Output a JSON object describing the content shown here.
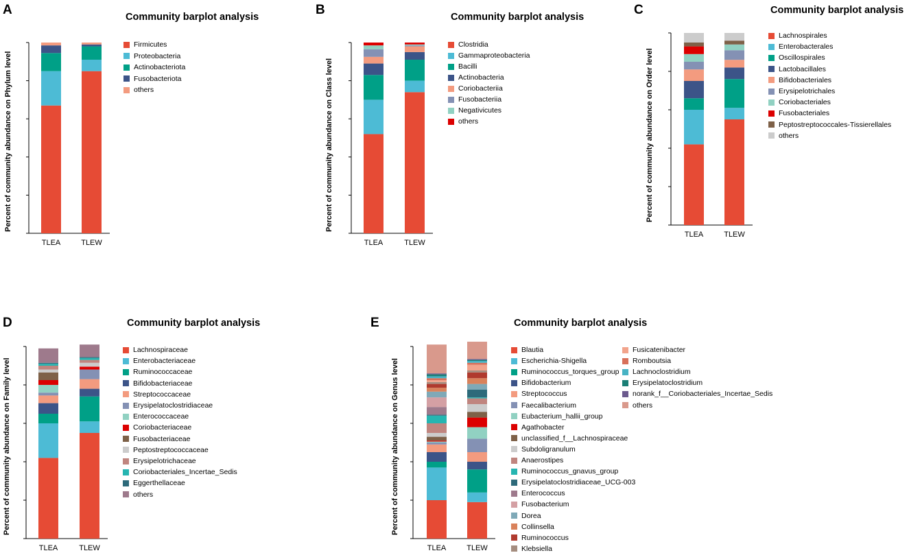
{
  "chart_data": [
    {
      "panel_letter": "A",
      "type": "bar",
      "stacked": true,
      "title": "Community barplot analysis",
      "xlabel": "",
      "ylabel": "Percent of community abundance on Phylum level",
      "ylim": [
        0,
        1
      ],
      "categories": [
        "TLEA",
        "TLEW"
      ],
      "series": [
        {
          "name": "Firmicutes",
          "color": "#e64b35",
          "values": [
            0.67,
            0.85
          ]
        },
        {
          "name": "Proteobacteria",
          "color": "#4dbbd5",
          "values": [
            0.18,
            0.06
          ]
        },
        {
          "name": "Actinobacteriota",
          "color": "#00a087",
          "values": [
            0.095,
            0.07
          ]
        },
        {
          "name": "Fusobacteriota",
          "color": "#3c5488",
          "values": [
            0.04,
            0.01
          ]
        },
        {
          "name": "others",
          "color": "#f39b7f",
          "values": [
            0.015,
            0.01
          ]
        }
      ]
    },
    {
      "panel_letter": "B",
      "type": "bar",
      "stacked": true,
      "title": "Community barplot analysis",
      "xlabel": "",
      "ylabel": "Percent of community abundance on Class level",
      "ylim": [
        0,
        1
      ],
      "categories": [
        "TLEA",
        "TLEW"
      ],
      "series": [
        {
          "name": "Clostridia",
          "color": "#e64b35",
          "values": [
            0.52,
            0.74
          ]
        },
        {
          "name": "Gammaproteobacteria",
          "color": "#4dbbd5",
          "values": [
            0.18,
            0.06
          ]
        },
        {
          "name": "Bacilli",
          "color": "#00a087",
          "values": [
            0.13,
            0.11
          ]
        },
        {
          "name": "Actinobacteria",
          "color": "#3c5488",
          "values": [
            0.06,
            0.04
          ]
        },
        {
          "name": "Coriobacteriia",
          "color": "#f39b7f",
          "values": [
            0.035,
            0.03
          ]
        },
        {
          "name": "Fusobacteriia",
          "color": "#8491b4",
          "values": [
            0.04,
            0.005
          ]
        },
        {
          "name": "Negativicutes",
          "color": "#91d1c2",
          "values": [
            0.02,
            0.005
          ]
        },
        {
          "name": "others",
          "color": "#dc0000",
          "values": [
            0.015,
            0.01
          ]
        }
      ]
    },
    {
      "panel_letter": "C",
      "type": "bar",
      "stacked": true,
      "title": "Community barplot analysis",
      "xlabel": "",
      "ylabel": "Percent of community abundance on Order level",
      "ylim": [
        0,
        1
      ],
      "categories": [
        "TLEA",
        "TLEW"
      ],
      "series": [
        {
          "name": "Lachnospirales",
          "color": "#e64b35",
          "values": [
            0.42,
            0.55
          ]
        },
        {
          "name": "Enterobacterales",
          "color": "#4dbbd5",
          "values": [
            0.18,
            0.06
          ]
        },
        {
          "name": "Oscillospirales",
          "color": "#00a087",
          "values": [
            0.06,
            0.15
          ]
        },
        {
          "name": "Lactobacillales",
          "color": "#3c5488",
          "values": [
            0.09,
            0.06
          ]
        },
        {
          "name": "Bifidobacteriales",
          "color": "#f39b7f",
          "values": [
            0.06,
            0.04
          ]
        },
        {
          "name": "Erysipelotrichales",
          "color": "#8491b4",
          "values": [
            0.04,
            0.05
          ]
        },
        {
          "name": "Coriobacteriales",
          "color": "#91d1c2",
          "values": [
            0.04,
            0.03
          ]
        },
        {
          "name": "Fusobacteriales",
          "color": "#dc0000",
          "values": [
            0.04,
            0.0
          ]
        },
        {
          "name": "Peptostreptococcales-Tissierellales",
          "color": "#7e6148",
          "values": [
            0.02,
            0.02
          ]
        },
        {
          "name": "others",
          "color": "#cccccc",
          "values": [
            0.05,
            0.04
          ]
        }
      ]
    },
    {
      "panel_letter": "D",
      "type": "bar",
      "stacked": true,
      "title": "Community barplot analysis",
      "xlabel": "",
      "ylabel": "Percent of community abundance on Family level",
      "ylim": [
        0,
        1
      ],
      "categories": [
        "TLEA",
        "TLEW"
      ],
      "series": [
        {
          "name": "Lachnospiraceae",
          "color": "#e64b35",
          "values": [
            0.42,
            0.55
          ]
        },
        {
          "name": "Enterobacteriaceae",
          "color": "#4dbbd5",
          "values": [
            0.18,
            0.06
          ]
        },
        {
          "name": "Ruminococcaceae",
          "color": "#00a087",
          "values": [
            0.05,
            0.13
          ]
        },
        {
          "name": "Bifidobacteriaceae",
          "color": "#3c5488",
          "values": [
            0.055,
            0.04
          ]
        },
        {
          "name": "Streptococcaceae",
          "color": "#f39b7f",
          "values": [
            0.04,
            0.05
          ]
        },
        {
          "name": "Erysipelatoclostridiaceae",
          "color": "#8491b4",
          "values": [
            0.015,
            0.05
          ]
        },
        {
          "name": "Enterococcaceae",
          "color": "#91d1c2",
          "values": [
            0.04,
            0.0
          ]
        },
        {
          "name": "Coriobacteriaceae",
          "color": "#dc0000",
          "values": [
            0.025,
            0.015
          ]
        },
        {
          "name": "Fusobacteriaceae",
          "color": "#7e6148",
          "values": [
            0.04,
            0.0
          ]
        },
        {
          "name": "Peptostreptococcaceae",
          "color": "#cccccc",
          "values": [
            0.015,
            0.02
          ]
        },
        {
          "name": "Erysipelotrichaceae",
          "color": "#c0857f",
          "values": [
            0.02,
            0.015
          ]
        },
        {
          "name": "Coriobacteriales_Incertae_Sedis",
          "color": "#26b5b1",
          "values": [
            0.01,
            0.01
          ]
        },
        {
          "name": "Eggerthellaceae",
          "color": "#2d6a7a",
          "values": [
            0.005,
            0.005
          ]
        },
        {
          "name": "others",
          "color": "#9e7a8c",
          "values": [
            0.075,
            0.065
          ]
        }
      ]
    },
    {
      "panel_letter": "E",
      "type": "bar",
      "stacked": true,
      "title": "Community barplot analysis",
      "xlabel": "",
      "ylabel": "Percent of community abundance on Genus level",
      "ylim": [
        0,
        1
      ],
      "categories": [
        "TLEA",
        "TLEW"
      ],
      "series": [
        {
          "name": "Blautia",
          "color": "#e64b35",
          "values": [
            0.2,
            0.19
          ]
        },
        {
          "name": "Escherichia-Shigella",
          "color": "#4dbbd5",
          "values": [
            0.17,
            0.05
          ]
        },
        {
          "name": "Ruminococcus_torques_group",
          "color": "#00a087",
          "values": [
            0.03,
            0.12
          ]
        },
        {
          "name": "Bifidobacterium",
          "color": "#3c5488",
          "values": [
            0.05,
            0.04
          ]
        },
        {
          "name": "Streptococcus",
          "color": "#f39b7f",
          "values": [
            0.04,
            0.05
          ]
        },
        {
          "name": "Faecalibacterium",
          "color": "#8491b4",
          "values": [
            0.01,
            0.07
          ]
        },
        {
          "name": "Eubacterium_hallii_group",
          "color": "#91d1c2",
          "values": [
            0.005,
            0.06
          ]
        },
        {
          "name": "Agathobacter",
          "color": "#dc0000",
          "values": [
            0.005,
            0.05
          ]
        },
        {
          "name": "unclassified_f__Lachnospiraceae",
          "color": "#7e6148",
          "values": [
            0.02,
            0.03
          ]
        },
        {
          "name": "Subdoligranulum",
          "color": "#cccccc",
          "values": [
            0.02,
            0.04
          ]
        },
        {
          "name": "Anaerostipes",
          "color": "#c0857f",
          "values": [
            0.05,
            0.03
          ]
        },
        {
          "name": "Ruminococcus_gnavus_group",
          "color": "#26b5b1",
          "values": [
            0.04,
            0.005
          ]
        },
        {
          "name": "Erysipelatoclostridiaceae_UCG-003",
          "color": "#2d6a7a",
          "values": [
            0.005,
            0.04
          ]
        },
        {
          "name": "Enterococcus",
          "color": "#9e7a8c",
          "values": [
            0.04,
            0.0
          ]
        },
        {
          "name": "Fusobacterium",
          "color": "#d4a0a4",
          "values": [
            0.05,
            0.0
          ]
        },
        {
          "name": "Dorea",
          "color": "#7fa9b7",
          "values": [
            0.03,
            0.03
          ]
        },
        {
          "name": "Collinsella",
          "color": "#d9825b",
          "values": [
            0.02,
            0.03
          ]
        },
        {
          "name": "Ruminococcus",
          "color": "#b03a2e",
          "values": [
            0.02,
            0.03
          ]
        },
        {
          "name": "Klebsiella",
          "color": "#a58d7f",
          "values": [
            0.01,
            0.01
          ]
        },
        {
          "name": "Fusicatenibacter",
          "color": "#f2a48c",
          "values": [
            0.01,
            0.03
          ]
        },
        {
          "name": "Romboutsia",
          "color": "#d8705a",
          "values": [
            0.01,
            0.01
          ]
        },
        {
          "name": "Lachnoclostridium",
          "color": "#48b3c4",
          "values": [
            0.01,
            0.01
          ]
        },
        {
          "name": "Erysipelatoclostridium",
          "color": "#1a7f76",
          "values": [
            0.01,
            0.005
          ]
        },
        {
          "name": "norank_f__Coriobacteriales_Incertae_Sedis",
          "color": "#6c5a8e",
          "values": [
            0.005,
            0.005
          ]
        },
        {
          "name": "others",
          "color": "#d9998c",
          "values": [
            0.15,
            0.09
          ]
        }
      ]
    }
  ]
}
